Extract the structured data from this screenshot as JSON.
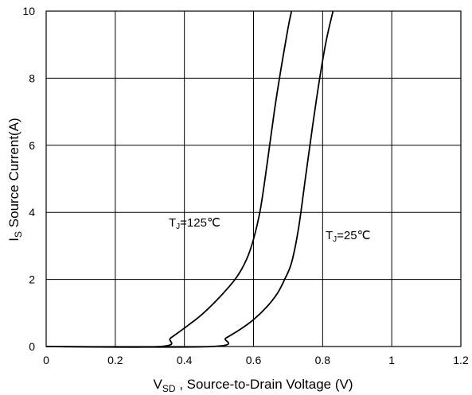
{
  "chart_data": {
    "type": "line",
    "title": "",
    "xlabel_main": "V",
    "xlabel_sub": "SD",
    "xlabel_rest": " , Source-to-Drain Voltage (V)",
    "ylabel_main": "I",
    "ylabel_sub": "S",
    "ylabel_rest": " Source Current(A)",
    "xlim": [
      0,
      1.2
    ],
    "ylim": [
      0,
      10
    ],
    "xticks": [
      "0",
      "0.2",
      "0.4",
      "0.6",
      "0.8",
      "1",
      "1.2"
    ],
    "yticks": [
      "0",
      "2",
      "4",
      "6",
      "8",
      "10"
    ],
    "grid": true,
    "series": [
      {
        "name_main": "T",
        "name_sub": "J",
        "name_rest": "=125℃",
        "x": [
          0.0,
          0.33,
          0.36,
          0.4,
          0.45,
          0.5,
          0.55,
          0.58,
          0.6,
          0.62,
          0.64,
          0.66,
          0.68,
          0.7,
          0.71
        ],
        "y": [
          0.0,
          0.0,
          0.25,
          0.55,
          0.95,
          1.45,
          2.05,
          2.6,
          3.2,
          4.1,
          5.5,
          7.0,
          8.3,
          9.5,
          10.0
        ]
      },
      {
        "name_main": "T",
        "name_sub": "J",
        "name_rest": "=25℃",
        "x": [
          0.0,
          0.48,
          0.52,
          0.56,
          0.6,
          0.64,
          0.67,
          0.69,
          0.71,
          0.73,
          0.75,
          0.77,
          0.79,
          0.81,
          0.83
        ],
        "y": [
          0.0,
          0.0,
          0.25,
          0.5,
          0.8,
          1.2,
          1.6,
          2.0,
          2.5,
          3.5,
          5.0,
          6.5,
          7.9,
          9.1,
          10.0
        ]
      }
    ]
  }
}
